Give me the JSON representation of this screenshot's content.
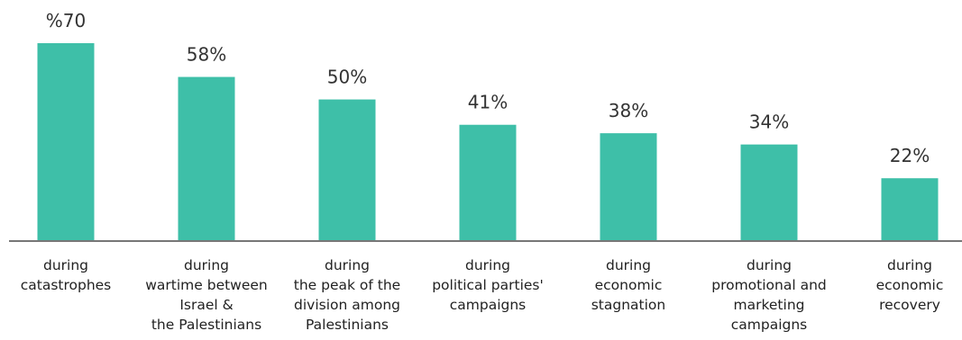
{
  "chart_data": {
    "type": "bar",
    "categories": [
      "during\ncatastrophes",
      "during\nwartime between\nIsrael &\nthe Palestinians",
      "during\nthe peak of the\ndivision among\nPalestinians",
      "during\npolitical parties'\ncampaigns",
      "during\neconomic\nstagnation",
      "during\npromotional and\nmarketing\ncampaigns",
      "during\neconomic\nrecovery"
    ],
    "values": [
      70,
      58,
      50,
      41,
      38,
      34,
      22
    ],
    "value_labels": [
      "%70",
      "58%",
      "50%",
      "41%",
      "38%",
      "34%",
      "22%"
    ],
    "color": "#3ebfa8",
    "ylim": [
      0,
      70
    ]
  }
}
